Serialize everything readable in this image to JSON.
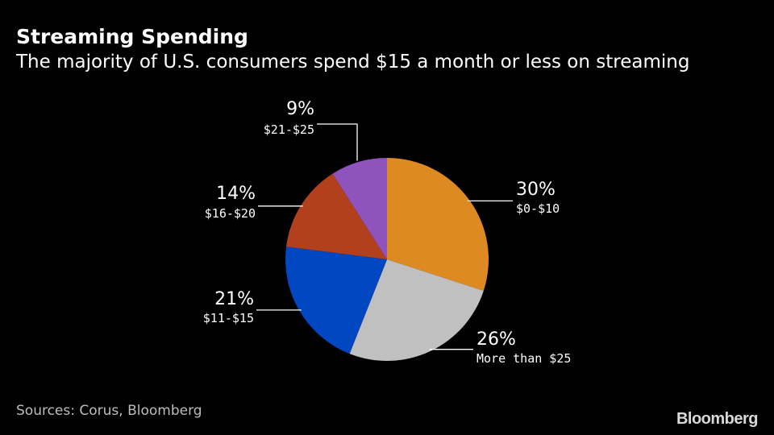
{
  "header": {
    "title": "Streaming Spending",
    "subtitle": "The majority of U.S. consumers spend $15 a month or less on streaming"
  },
  "footer": {
    "source": "Sources: Corus, Bloomberg",
    "brand": "Bloomberg"
  },
  "chart_data": {
    "type": "pie",
    "title": "Streaming Spending",
    "subtitle": "The majority of U.S. consumers spend $15 a month or less on streaming",
    "unit": "%",
    "start": "12 o'clock",
    "direction": "clockwise",
    "slices": [
      {
        "label": "$0-$10",
        "value": 30,
        "value_label": "30%",
        "color": "#DE8A23"
      },
      {
        "label": "More than $25",
        "value": 26,
        "value_label": "26%",
        "color": "#C0C0C0"
      },
      {
        "label": "$11-$15",
        "value": 21,
        "value_label": "21%",
        "color": "#0047C1"
      },
      {
        "label": "$16-$20",
        "value": 14,
        "value_label": "14%",
        "color": "#B2401D"
      },
      {
        "label": "$21-$25",
        "value": 9,
        "value_label": "9%",
        "color": "#8E53BC"
      }
    ]
  }
}
